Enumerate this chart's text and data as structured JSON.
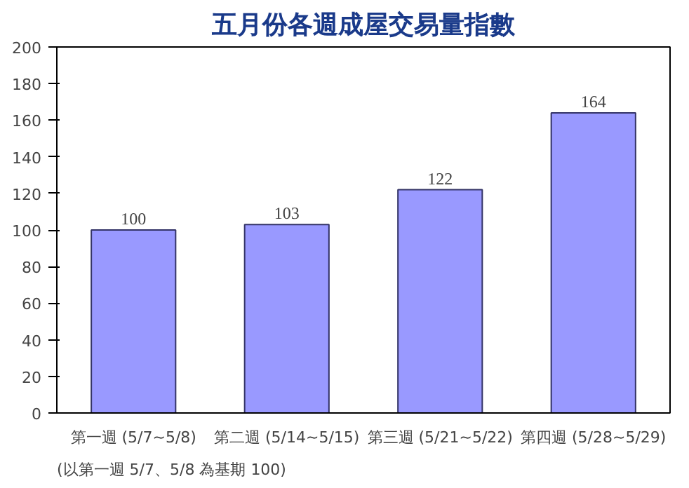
{
  "chart_data": {
    "type": "bar",
    "title": "五月份各週成屋交易量指數",
    "categories": [
      "第一週 (5/7~5/8)",
      "第二週 (5/14~5/15)",
      "第三週 (5/21~5/22)",
      "第四週 (5/28~5/29)"
    ],
    "values": [
      100,
      103,
      122,
      164
    ],
    "color": "#9999ff",
    "ylim": [
      0,
      200
    ],
    "yticks": [
      0,
      20,
      40,
      60,
      80,
      100,
      120,
      140,
      160,
      180,
      200
    ],
    "grid": false,
    "data_labels": true,
    "annotations": [
      "(以第一週 5/7、5/8 為基期 100)"
    ]
  }
}
